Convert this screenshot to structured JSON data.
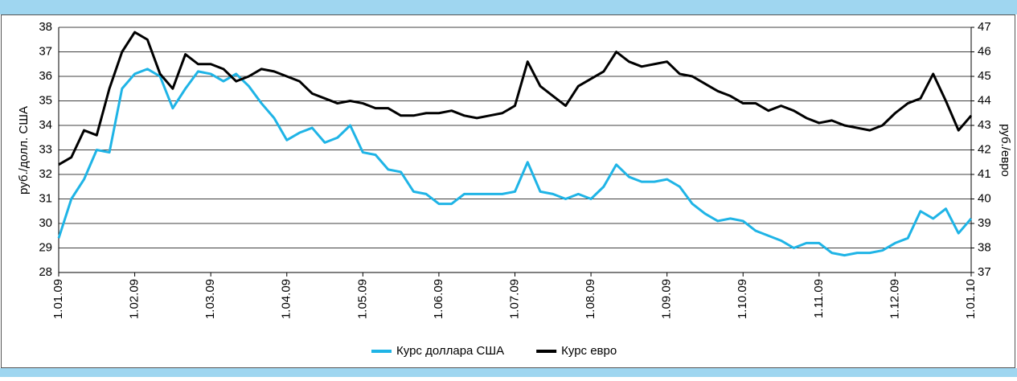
{
  "chart_data": {
    "type": "line",
    "ylabel": "руб./долл. США",
    "y2label": "руб./евро",
    "categories": [
      "1.01.09",
      null,
      null,
      null,
      null,
      null,
      "1.02.09",
      null,
      null,
      null,
      null,
      null,
      "1.03.09",
      null,
      null,
      null,
      null,
      null,
      "1.04.09",
      null,
      null,
      null,
      null,
      null,
      "1.05.09",
      null,
      null,
      null,
      null,
      null,
      "1.06.09",
      null,
      null,
      null,
      null,
      null,
      "1.07.09",
      null,
      null,
      null,
      null,
      null,
      "1.08.09",
      null,
      null,
      null,
      null,
      null,
      "1.09.09",
      null,
      null,
      null,
      null,
      null,
      "1.10.09",
      null,
      null,
      null,
      null,
      null,
      "1.11.09",
      null,
      null,
      null,
      null,
      null,
      "1.12.09",
      null,
      null,
      null,
      null,
      null,
      "1.01.10"
    ],
    "series": [
      {
        "name": "Курс доллара США",
        "color": "#1fb4e6",
        "values": [
          29.4,
          31.0,
          31.8,
          33.0,
          32.9,
          35.5,
          36.1,
          36.3,
          36.0,
          34.7,
          35.5,
          36.2,
          36.1,
          35.8,
          36.1,
          35.6,
          34.9,
          34.3,
          33.4,
          33.7,
          33.9,
          33.3,
          33.5,
          34.0,
          32.9,
          32.8,
          32.2,
          32.1,
          31.3,
          31.2,
          30.8,
          30.8,
          31.2,
          31.2,
          31.2,
          31.2,
          31.3,
          32.5,
          31.3,
          31.2,
          31.0,
          31.2,
          31.0,
          31.5,
          32.4,
          31.9,
          31.7,
          31.7,
          31.8,
          31.5,
          30.8,
          30.4,
          30.1,
          30.2,
          30.1,
          29.7,
          29.5,
          29.3,
          29.0,
          29.2,
          29.2,
          28.8,
          28.7,
          28.8,
          28.8,
          28.9,
          29.2,
          29.4,
          30.5,
          30.2,
          30.6,
          29.6,
          30.2
        ]
      },
      {
        "name": "Курс евро",
        "color": "#000000",
        "axis": "y2",
        "values": [
          41.4,
          41.7,
          42.8,
          42.6,
          44.5,
          46.0,
          46.8,
          46.5,
          45.1,
          44.5,
          45.9,
          45.5,
          45.5,
          45.3,
          44.8,
          45.0,
          45.3,
          45.2,
          45.0,
          44.8,
          44.3,
          44.1,
          43.9,
          44.0,
          43.9,
          43.7,
          43.7,
          43.4,
          43.4,
          43.5,
          43.5,
          43.6,
          43.4,
          43.3,
          43.4,
          43.5,
          43.8,
          45.6,
          44.6,
          44.2,
          43.8,
          44.6,
          44.9,
          45.2,
          46.0,
          45.6,
          45.4,
          45.5,
          45.6,
          45.1,
          45.0,
          44.7,
          44.4,
          44.2,
          43.9,
          43.9,
          43.6,
          43.8,
          43.6,
          43.3,
          43.1,
          43.2,
          43.0,
          42.9,
          42.8,
          43.0,
          43.5,
          43.9,
          44.1,
          45.1,
          44.0,
          42.8,
          43.4
        ]
      }
    ],
    "ylim": [
      28,
      38
    ],
    "yticks": [
      28,
      29,
      30,
      31,
      32,
      33,
      34,
      35,
      36,
      37,
      38
    ],
    "y2lim": [
      37,
      47
    ],
    "y2ticks": [
      37,
      38,
      39,
      40,
      41,
      42,
      43,
      44,
      45,
      46,
      47
    ],
    "grid": true,
    "legend": "bottom"
  }
}
